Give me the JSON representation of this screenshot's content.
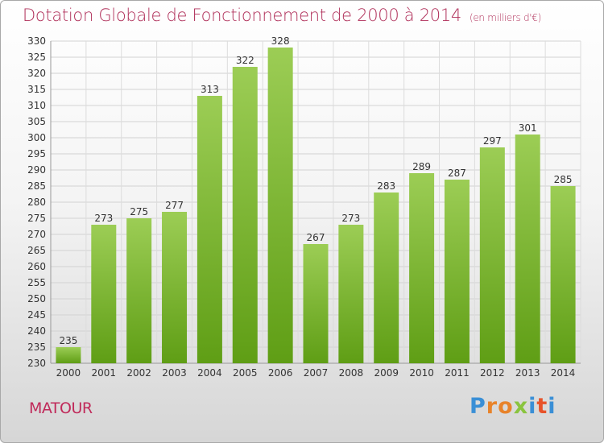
{
  "header": {
    "title": "Dotation Globale de Fonctionnement de 2000 à 2014",
    "units": "(en milliers d'€)"
  },
  "footer": {
    "place": "MATOUR",
    "logo": "Proxiti",
    "logo_colors": [
      "#3a8fd6",
      "#e8832a",
      "#e8832a",
      "#8ac43f",
      "#3a8fd6",
      "#e8532a",
      "#3a8fd6"
    ]
  },
  "chart_data": {
    "type": "bar",
    "title": "Dotation Globale de Fonctionnement de 2000 à 2014",
    "subtitle": "(en milliers d'€)",
    "xlabel": "",
    "ylabel": "",
    "ylim": [
      230,
      330
    ],
    "y_ticks": [
      230,
      235,
      240,
      245,
      250,
      255,
      260,
      265,
      270,
      275,
      280,
      285,
      290,
      295,
      300,
      305,
      310,
      315,
      320,
      325,
      330
    ],
    "grid": true,
    "legend": "none",
    "bar_color": "#7cb82f",
    "categories": [
      "2000",
      "2001",
      "2002",
      "2003",
      "2004",
      "2005",
      "2006",
      "2007",
      "2008",
      "2009",
      "2010",
      "2011",
      "2012",
      "2013",
      "2014"
    ],
    "values": [
      235,
      273,
      275,
      277,
      313,
      322,
      328,
      267,
      273,
      283,
      289,
      287,
      297,
      301,
      285
    ]
  }
}
